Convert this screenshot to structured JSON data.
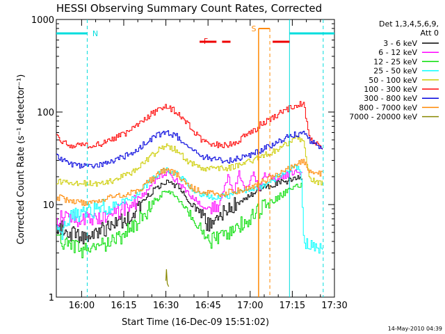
{
  "chart_data": {
    "type": "line",
    "title": "HESSI Observing Summary Count Rates, Corrected",
    "ylabel": "Corrected Count Rate (s⁻¹ detector⁻¹)",
    "xlabel": "Start Time (16-Dec-09 15:51:02)",
    "x_unit": "minutes after 15:51:02",
    "xlim": [
      0,
      99
    ],
    "ylim": [
      1,
      1000
    ],
    "yscale": "log",
    "grid": false,
    "legend_position": "right",
    "x_ticks": [
      {
        "label": "16:00",
        "x": 9
      },
      {
        "label": "16:15",
        "x": 24
      },
      {
        "label": "16:30",
        "x": 39
      },
      {
        "label": "16:45",
        "x": 54
      },
      {
        "label": "17:00",
        "x": 69
      },
      {
        "label": "17:15",
        "x": 84
      },
      {
        "label": "17:30",
        "x": 99
      }
    ],
    "y_ticks": [
      {
        "label": "1",
        "y": 1
      },
      {
        "label": "10",
        "y": 10
      },
      {
        "label": "100",
        "y": 100
      },
      {
        "label": "1000",
        "y": 1000
      }
    ],
    "legend_title": [
      "Det 1,3,4,5,6,9,",
      "Att 0"
    ],
    "series": [
      {
        "name": "3 - 6 keV",
        "color": "#000000",
        "x": [
          0,
          5,
          10,
          15,
          20,
          25,
          30,
          35,
          39,
          43,
          47,
          51,
          53,
          55,
          58,
          61,
          64,
          67,
          70,
          73,
          76,
          79,
          82,
          85,
          88
        ],
        "y": [
          6,
          5,
          4.5,
          5,
          6,
          7,
          10,
          15,
          18,
          16,
          11,
          8,
          6.5,
          6,
          7.5,
          9,
          10,
          12,
          13,
          15,
          16,
          17,
          18,
          19,
          20
        ]
      },
      {
        "name": "6 - 12 keV",
        "color": "#ff00ff",
        "x": [
          0,
          5,
          10,
          15,
          20,
          25,
          30,
          35,
          39,
          43,
          47,
          51,
          55,
          58,
          61,
          63,
          65,
          67,
          70,
          72,
          74,
          76,
          79,
          82,
          85,
          88
        ],
        "y": [
          7,
          7,
          7,
          7.5,
          8,
          9,
          12,
          18,
          22,
          18,
          13,
          10,
          9,
          10,
          20,
          13,
          22,
          14,
          22,
          15,
          21,
          20,
          19,
          21,
          23,
          22
        ]
      },
      {
        "name": "12 - 25 keV",
        "color": "#00dd00",
        "x": [
          0,
          5,
          10,
          15,
          20,
          25,
          30,
          35,
          39,
          43,
          47,
          51,
          55,
          58,
          61,
          64,
          67,
          70,
          73,
          76,
          79,
          82,
          85,
          88
        ],
        "y": [
          4,
          3.5,
          3.2,
          3.5,
          4,
          5,
          7,
          11,
          14,
          12,
          8,
          5.5,
          4,
          4.5,
          5,
          5.5,
          6.5,
          7.5,
          9,
          10.5,
          12,
          14,
          16,
          17
        ]
      },
      {
        "name": "25 - 50 keV",
        "color": "#00ffff",
        "x": [
          0,
          2,
          4,
          6,
          10,
          15,
          20,
          25,
          30,
          35,
          39,
          43,
          47,
          51,
          55,
          58,
          61,
          64,
          67,
          70,
          73,
          76,
          79,
          82,
          85,
          87,
          88,
          90,
          95
        ],
        "y": [
          6,
          5,
          6,
          8,
          8,
          9,
          10,
          11,
          14,
          20,
          24,
          21,
          16,
          13,
          12,
          12,
          12.5,
          13,
          14,
          15,
          16,
          18,
          20,
          22,
          25,
          24,
          4,
          3.5,
          3.5
        ]
      },
      {
        "name": "50 - 100 keV",
        "color": "#cccc00",
        "x": [
          0,
          5,
          10,
          15,
          20,
          25,
          30,
          35,
          39,
          43,
          47,
          51,
          55,
          58,
          61,
          64,
          67,
          70,
          73,
          76,
          79,
          82,
          85,
          88,
          90,
          95
        ],
        "y": [
          18,
          17,
          17,
          17,
          18,
          21,
          26,
          36,
          44,
          38,
          29,
          25,
          24,
          24,
          25,
          26,
          28,
          30,
          33,
          36,
          40,
          45,
          52,
          50,
          19,
          17
        ]
      },
      {
        "name": "100 - 300 keV",
        "color": "#ff0000",
        "x": [
          0,
          2,
          5,
          10,
          15,
          20,
          25,
          30,
          35,
          39,
          43,
          47,
          51,
          55,
          58,
          61,
          64,
          67,
          70,
          73,
          76,
          79,
          82,
          85,
          88,
          90,
          93,
          95
        ],
        "y": [
          60,
          48,
          44,
          43,
          45,
          50,
          60,
          80,
          100,
          115,
          100,
          72,
          52,
          45,
          44,
          45,
          48,
          55,
          62,
          75,
          85,
          95,
          105,
          118,
          125,
          50,
          45,
          42
        ]
      },
      {
        "name": "300 - 800 keV",
        "color": "#0000dd",
        "x": [
          0,
          2,
          5,
          10,
          15,
          20,
          25,
          30,
          35,
          39,
          43,
          47,
          51,
          55,
          58,
          61,
          64,
          67,
          70,
          73,
          76,
          79,
          82,
          85,
          88,
          90,
          93,
          95
        ],
        "y": [
          34,
          30,
          27,
          26,
          27,
          29,
          34,
          42,
          55,
          62,
          54,
          42,
          34,
          31,
          30,
          30,
          31,
          33,
          36,
          39,
          43,
          47,
          53,
          57,
          58,
          50,
          45,
          35
        ]
      },
      {
        "name": "800 - 7000 keV",
        "color": "#ff8800",
        "x": [
          0,
          5,
          10,
          15,
          20,
          25,
          30,
          35,
          39,
          43,
          47,
          51,
          55,
          58,
          61,
          64,
          67,
          70,
          73,
          76,
          79,
          82,
          85,
          88,
          90,
          95
        ],
        "y": [
          12,
          11,
          10.5,
          11,
          12,
          13,
          15,
          20,
          24,
          21,
          16,
          14,
          13,
          13,
          13.5,
          14,
          15,
          16,
          17.5,
          19,
          21,
          24,
          27,
          30,
          22,
          21
        ]
      },
      {
        "name": "7000 - 20000 keV",
        "color": "#888800",
        "x": [
          39,
          39.2,
          39.5,
          40
        ],
        "y": [
          1.5,
          2,
          1.4,
          1.3
        ]
      }
    ],
    "annotations": [
      {
        "label": "N",
        "color": "#00dddd"
      },
      {
        "label": "F",
        "color": "#ee0000"
      },
      {
        "label": "S",
        "color": "#ff8800"
      }
    ],
    "markers": {
      "N": {
        "bars": [
          [
            0,
            11
          ],
          [
            83,
            99
          ]
        ],
        "dashed_lines": [
          11,
          95
        ],
        "solid_lines": [
          83
        ]
      },
      "F": {
        "segments": [
          [
            51,
            57
          ],
          [
            59,
            62
          ],
          [
            77,
            83
          ]
        ]
      },
      "S": {
        "segments": [
          [
            72,
            76
          ]
        ],
        "solid_lines": [
          72
        ],
        "dashed_lines": [
          76
        ]
      }
    },
    "timestamp": "14-May-2010 04:39"
  }
}
